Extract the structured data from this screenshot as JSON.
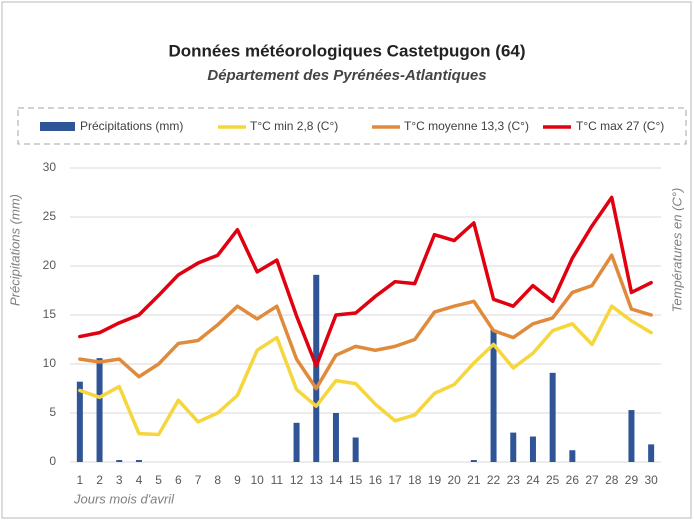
{
  "chart_data": {
    "type": "combo",
    "title": "Données météorologiques Castetpugon (64)",
    "subtitle": "Département des Pyrénées-Atlantiques",
    "x_label": "Jours mois d'avril",
    "y_label": "Précipitations (mm)",
    "y2_label": "Températures en (C°)",
    "categories": [
      "1",
      "2",
      "3",
      "4",
      "5",
      "6",
      "7",
      "8",
      "9",
      "10",
      "11",
      "12",
      "13",
      "14",
      "15",
      "16",
      "17",
      "18",
      "19",
      "20",
      "21",
      "22",
      "23",
      "24",
      "25",
      "26",
      "27",
      "28",
      "29",
      "30"
    ],
    "series": [
      {
        "name": "Précipitations (mm)",
        "type": "bar",
        "color": "#2f5597",
        "values": [
          8.2,
          10.6,
          0.2,
          0.2,
          0,
          0,
          0,
          0,
          0,
          0,
          0,
          4.0,
          19.1,
          5.0,
          2.5,
          0,
          0,
          0,
          0,
          0,
          0.2,
          13.5,
          3.0,
          2.6,
          9.1,
          1.2,
          0,
          0,
          5.3,
          1.8
        ]
      },
      {
        "name": "T°C min 2,8 (C°)",
        "type": "line",
        "color": "#f5d63d",
        "values": [
          7.3,
          6.6,
          7.7,
          2.9,
          2.8,
          6.3,
          4.1,
          5.0,
          6.8,
          11.4,
          12.7,
          7.4,
          5.7,
          8.3,
          8.0,
          5.9,
          4.2,
          4.8,
          7.0,
          7.9,
          10.1,
          12.0,
          9.6,
          11.1,
          13.4,
          14.1,
          12.0,
          15.9,
          14.4,
          13.2
        ]
      },
      {
        "name": "T°C moyenne 13,3 (C°)",
        "type": "line",
        "color": "#e08a3c",
        "values": [
          10.5,
          10.2,
          10.5,
          8.7,
          10.0,
          12.1,
          12.4,
          14.0,
          15.9,
          14.6,
          15.9,
          10.5,
          7.5,
          10.9,
          11.8,
          11.4,
          11.8,
          12.5,
          15.3,
          15.9,
          16.4,
          13.4,
          12.7,
          14.1,
          14.7,
          17.3,
          18.0,
          21.1,
          15.6,
          15.0
        ]
      },
      {
        "name": "T°C max 27 (C°)",
        "type": "line",
        "color": "#e0000f",
        "values": [
          12.8,
          13.2,
          14.2,
          15.0,
          17.0,
          19.1,
          20.3,
          21.1,
          23.7,
          19.4,
          20.6,
          14.9,
          9.8,
          15.0,
          15.2,
          16.9,
          18.4,
          18.2,
          23.2,
          22.6,
          24.4,
          16.6,
          15.9,
          18.0,
          16.4,
          20.8,
          24.1,
          27.0,
          17.3,
          18.3
        ]
      }
    ],
    "ylim": [
      0,
      30
    ],
    "yticks": [
      0,
      5,
      10,
      15,
      20,
      25,
      30
    ],
    "grid": true,
    "legend": "top"
  }
}
